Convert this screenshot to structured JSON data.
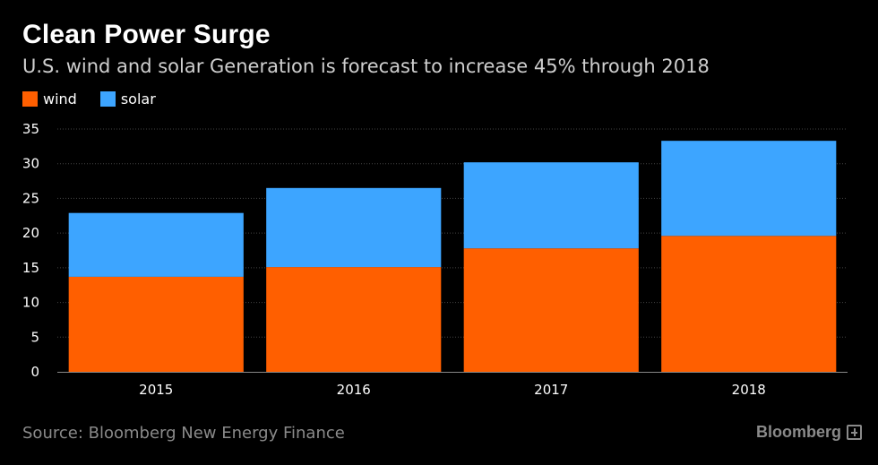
{
  "header": {
    "title": "Clean Power Surge",
    "subtitle": "U.S. wind and solar Generation is forecast to increase 45% through 2018"
  },
  "footer": {
    "source": "Source: Bloomberg New Energy Finance",
    "logo_text": "Bloomberg"
  },
  "colors": {
    "wind": "#ff5f00",
    "solar": "#3da5ff",
    "background": "#000000",
    "grid": "#444444"
  },
  "chart_data": {
    "type": "bar",
    "stacked": true,
    "categories": [
      "2015",
      "2016",
      "2017",
      "2018"
    ],
    "series": [
      {
        "name": "wind",
        "values": [
          13.7,
          15.1,
          17.8,
          19.6
        ],
        "color": "#ff5f00"
      },
      {
        "name": "solar",
        "values": [
          9.2,
          11.4,
          12.4,
          13.7
        ],
        "color": "#3da5ff"
      }
    ],
    "ylim": [
      0,
      35
    ],
    "yticks": [
      0,
      5,
      10,
      15,
      20,
      25,
      30,
      35
    ],
    "grid": true,
    "legend_position": "top-left"
  }
}
